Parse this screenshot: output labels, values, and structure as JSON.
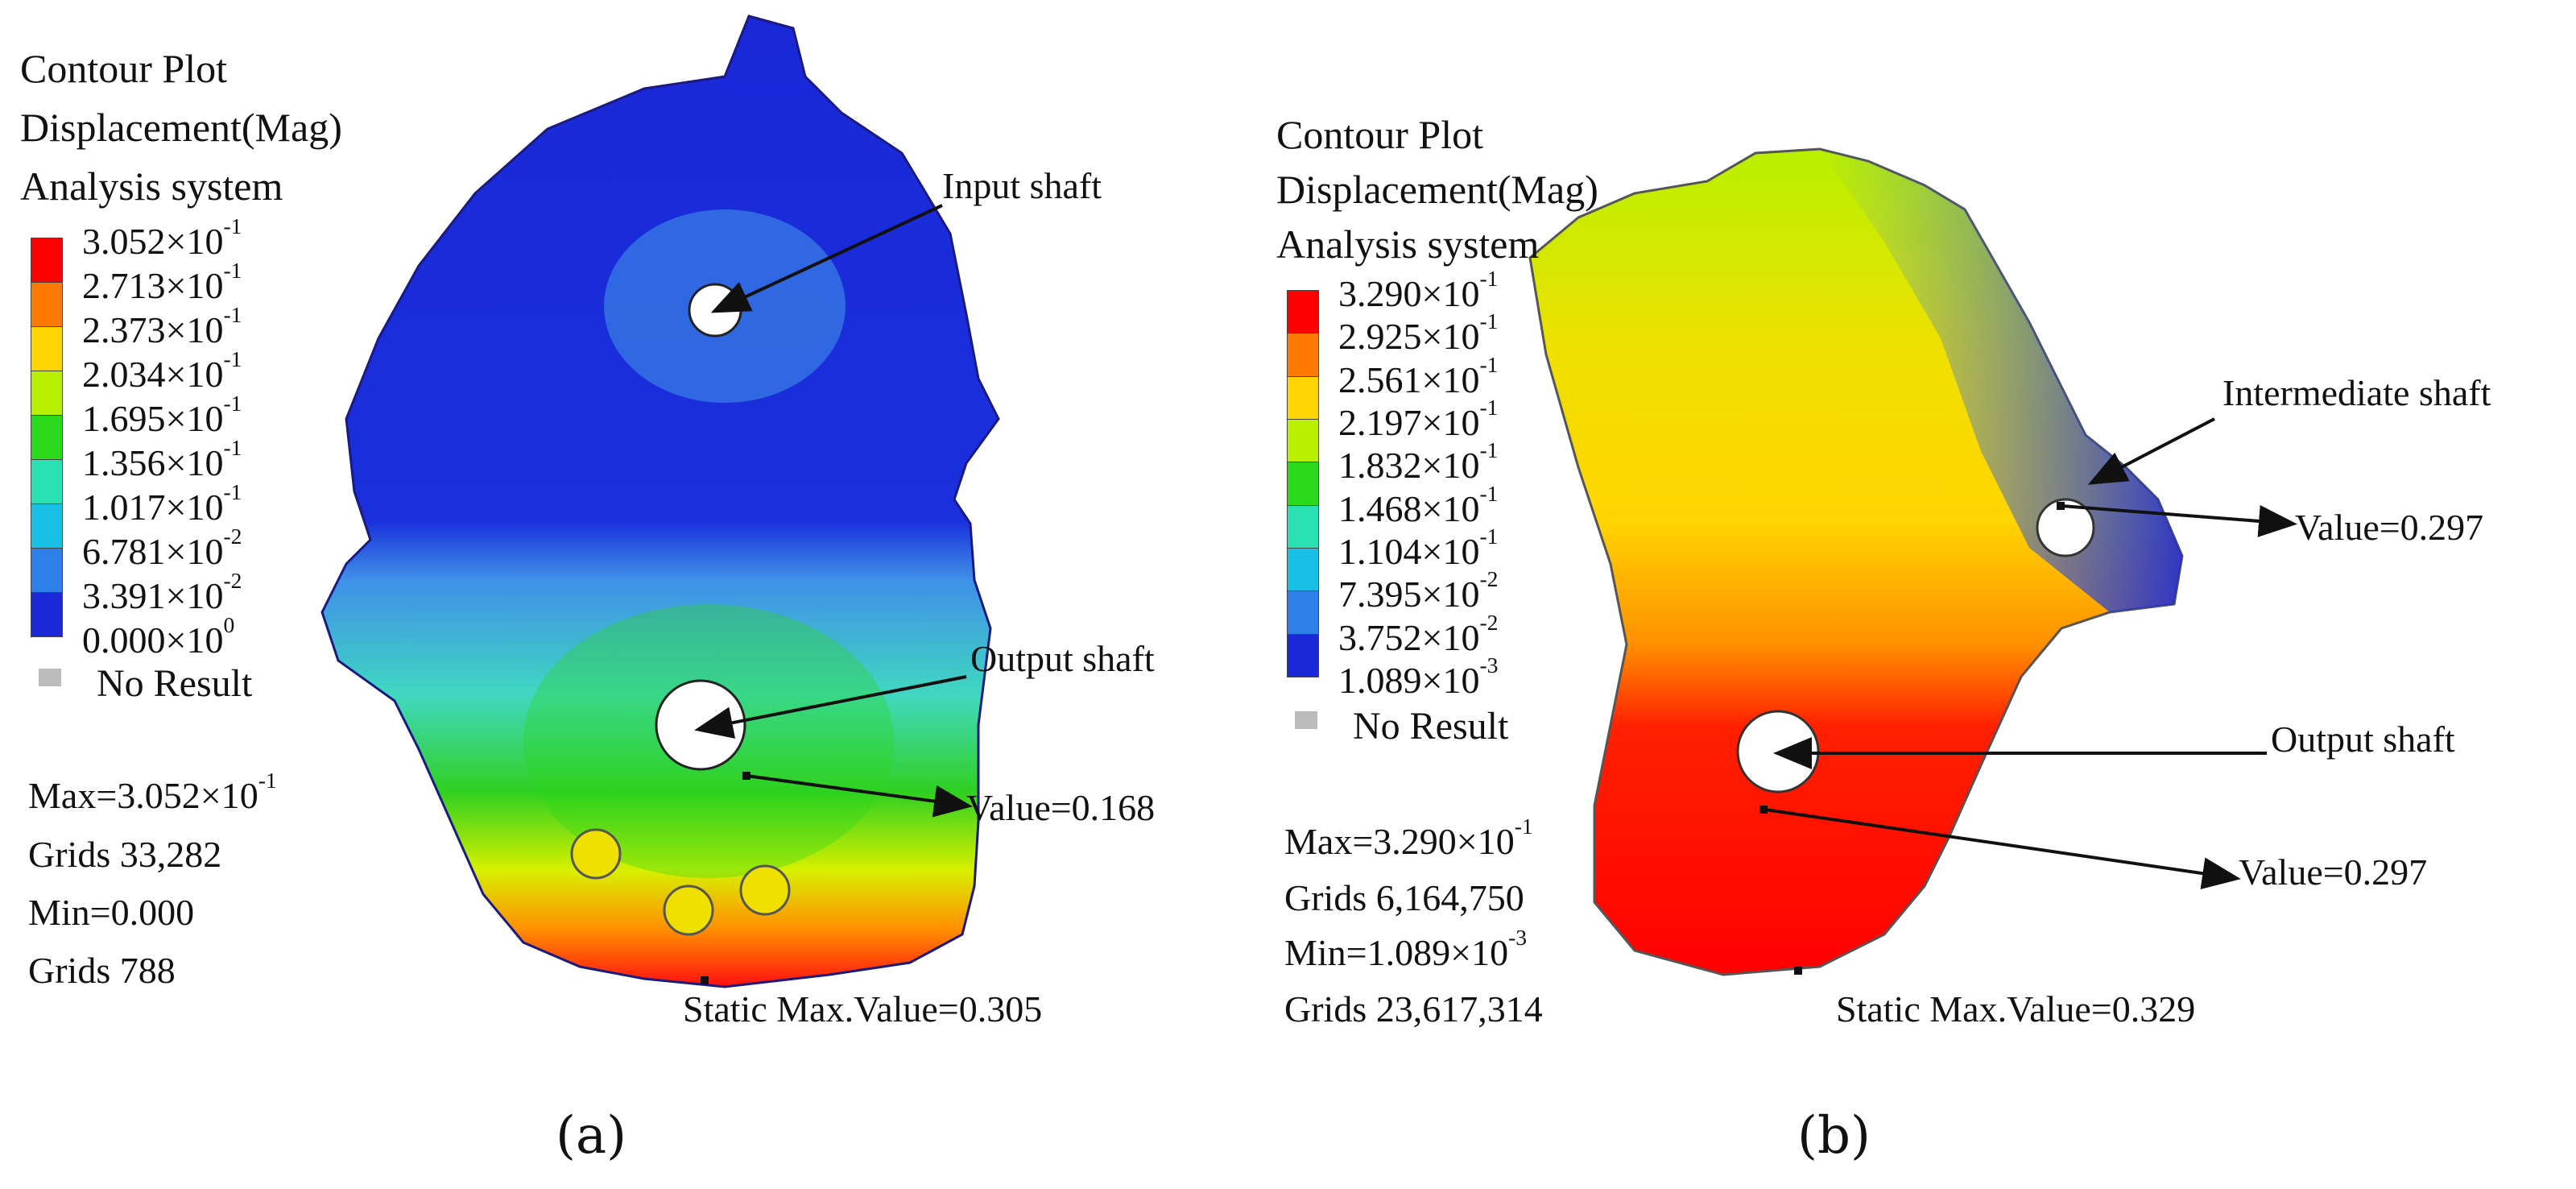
{
  "panels": [
    {
      "label": "(a)",
      "title_lines": [
        "Contour Plot",
        "Displacement(Mag)",
        "Analysis system"
      ],
      "scale": {
        "colors": [
          "#ff0000",
          "#ff7a00",
          "#ffd400",
          "#b8f000",
          "#2ad81c",
          "#28e0b0",
          "#18c0e6",
          "#2f7fe8",
          "#1a28d8"
        ],
        "ticks": [
          {
            "mant": "3.052×10",
            "exp": "-1"
          },
          {
            "mant": "2.713×10",
            "exp": "-1"
          },
          {
            "mant": "2.373×10",
            "exp": "-1"
          },
          {
            "mant": "2.034×10",
            "exp": "-1"
          },
          {
            "mant": "1.695×10",
            "exp": "-1"
          },
          {
            "mant": "1.356×10",
            "exp": "-1"
          },
          {
            "mant": "1.017×10",
            "exp": "-1"
          },
          {
            "mant": "6.781×10",
            "exp": "-2"
          },
          {
            "mant": "3.391×10",
            "exp": "-2"
          },
          {
            "mant": "0.000×10",
            "exp": "0"
          }
        ]
      },
      "no_result": "No Result",
      "stats": {
        "max_mant": "Max=3.052×10",
        "max_exp": "-1",
        "max_grids": "Grids 33,282",
        "min_mant": "Min=0.000",
        "min_exp": "",
        "min_grids": "Grids 788"
      },
      "annotations": {
        "input_shaft": "Input shaft",
        "output_shaft": "Output shaft",
        "value_output": "Value=0.168",
        "static_max": "Static Max.Value=0.305"
      }
    },
    {
      "label": "(b)",
      "title_lines": [
        "Contour Plot",
        "Displacement(Mag)",
        "Analysis system"
      ],
      "scale": {
        "colors": [
          "#ff0000",
          "#ff7a00",
          "#ffd400",
          "#b8f000",
          "#2ad81c",
          "#28e0b0",
          "#18c0e6",
          "#2f7fe8",
          "#1a28d8"
        ],
        "ticks": [
          {
            "mant": "3.290×10",
            "exp": "-1"
          },
          {
            "mant": "2.925×10",
            "exp": "-1"
          },
          {
            "mant": "2.561×10",
            "exp": "-1"
          },
          {
            "mant": "2.197×10",
            "exp": "-1"
          },
          {
            "mant": "1.832×10",
            "exp": "-1"
          },
          {
            "mant": "1.468×10",
            "exp": "-1"
          },
          {
            "mant": "1.104×10",
            "exp": "-1"
          },
          {
            "mant": "7.395×10",
            "exp": "-2"
          },
          {
            "mant": "3.752×10",
            "exp": "-2"
          },
          {
            "mant": "1.089×10",
            "exp": "-3"
          }
        ]
      },
      "no_result": "No Result",
      "stats": {
        "max_mant": "Max=3.290×10",
        "max_exp": "-1",
        "max_grids": "Grids 6,164,750",
        "min_mant": "Min=1.089×10",
        "min_exp": "-3",
        "min_grids": "Grids 23,617,314"
      },
      "annotations": {
        "intermediate_shaft": "Intermediate shaft",
        "value_intermediate": "Value=0.297",
        "output_shaft": "Output shaft",
        "value_output": "Value=0.297",
        "static_max": "Static Max.Value=0.329"
      }
    }
  ]
}
